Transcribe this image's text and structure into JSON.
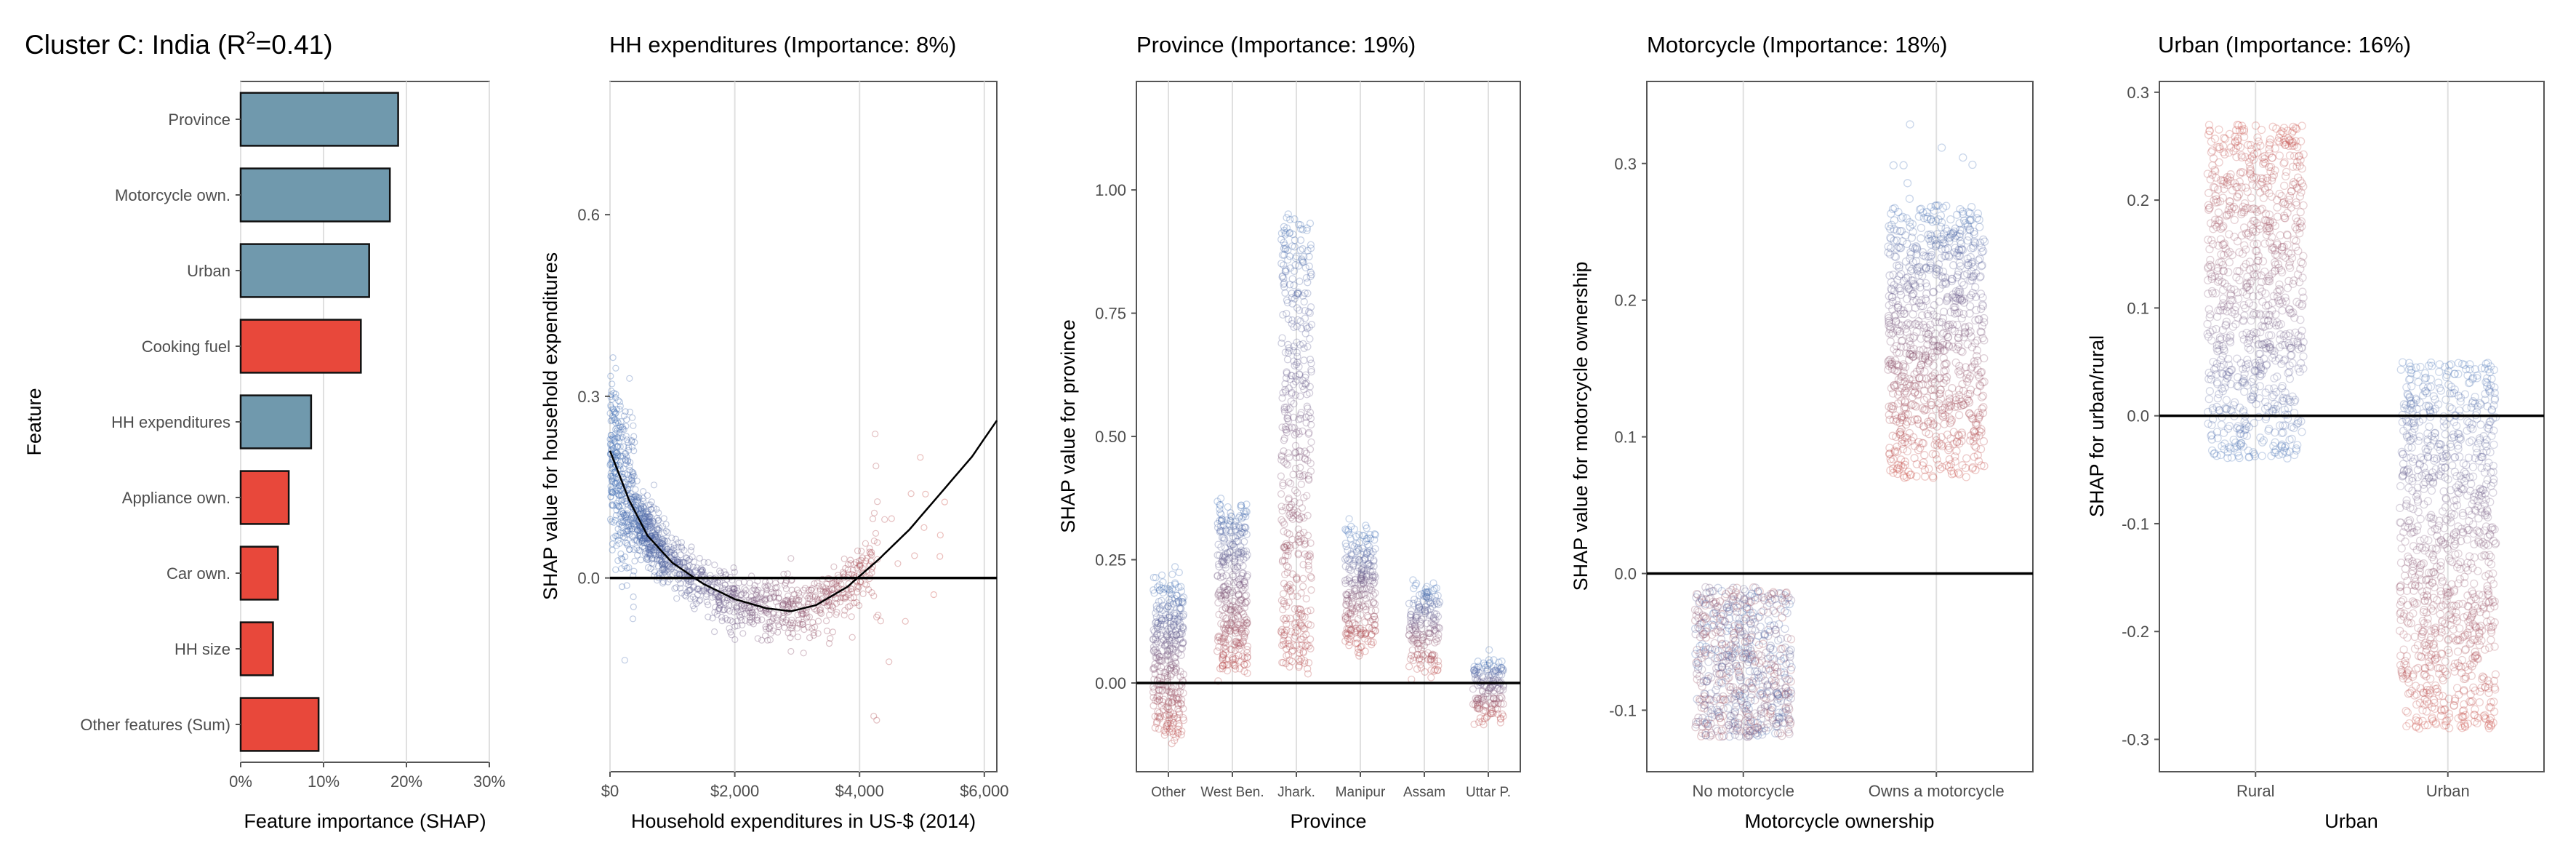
{
  "colors": {
    "urban_bar": "#7099AD",
    "rural_bar": "#E8483B",
    "blue": "#3E6DB5",
    "red": "#C8433A",
    "grid": "#E0E0E0"
  },
  "chart_data": [
    {
      "type": "bar",
      "orientation": "horizontal",
      "title": "Cluster C: India (R²=0.41)",
      "title_main": "Cluster C: India (R",
      "title_sup": "2",
      "title_rest": "=0.41)",
      "xlabel": "Feature importance (SHAP)",
      "ylabel": "Feature",
      "xlim": [
        0,
        0.3
      ],
      "xticks": [
        {
          "v": 0,
          "label": "0%"
        },
        {
          "v": 0.1,
          "label": "10%"
        },
        {
          "v": 0.2,
          "label": "20%"
        },
        {
          "v": 0.3,
          "label": "30%"
        }
      ],
      "categories": [
        "Province",
        "Motorcycle own.",
        "Urban",
        "Cooking fuel",
        "HH expenditures",
        "Appliance own.",
        "Car own.",
        "HH size",
        "Other features (Sum)"
      ],
      "values": [
        0.19,
        0.18,
        0.155,
        0.145,
        0.085,
        0.058,
        0.045,
        0.039,
        0.094
      ],
      "fills": [
        "urban_bar",
        "urban_bar",
        "urban_bar",
        "rural_bar",
        "urban_bar",
        "rural_bar",
        "rural_bar",
        "rural_bar",
        "rural_bar"
      ]
    },
    {
      "type": "scatter",
      "title": "HH expenditures (Importance: 8%)",
      "xlabel": "Household expenditures in US-$ (2014)",
      "ylabel": "SHAP value for household expenditures",
      "xlim": [
        0,
        6200
      ],
      "ylim": [
        -0.32,
        0.82
      ],
      "xticks": [
        {
          "v": 0,
          "label": "$0"
        },
        {
          "v": 2000,
          "label": "$2,000"
        },
        {
          "v": 4000,
          "label": "$4,000"
        },
        {
          "v": 6000,
          "label": "$6,000"
        }
      ],
      "yticks": [
        {
          "v": 0,
          "label": "0.0"
        },
        {
          "v": 0.3,
          "label": "0.3"
        },
        {
          "v": 0.6,
          "label": "0.6"
        }
      ],
      "hline": 0,
      "fit_curve": {
        "x": [
          0,
          300,
          600,
          1000,
          1500,
          2000,
          2500,
          2900,
          3300,
          3800,
          4300,
          4800,
          5300,
          5800,
          6200
        ],
        "y": [
          0.21,
          0.13,
          0.07,
          0.025,
          -0.01,
          -0.035,
          -0.05,
          -0.055,
          -0.045,
          -0.015,
          0.03,
          0.08,
          0.14,
          0.2,
          0.26
        ]
      }
    },
    {
      "type": "scatter",
      "title": "Province (Importance: 19%)",
      "xlabel": "Province",
      "ylabel": "SHAP value for province",
      "ylim": [
        -0.18,
        1.22
      ],
      "categories": [
        "Other",
        "West Ben.",
        "Jhark.",
        "Manipur",
        "Assam",
        "Uttar P."
      ],
      "yticks": [
        {
          "v": 0,
          "label": "0.00"
        },
        {
          "v": 0.25,
          "label": "0.25"
        },
        {
          "v": 0.5,
          "label": "0.50"
        },
        {
          "v": 0.75,
          "label": "0.75"
        },
        {
          "v": 1.0,
          "label": "1.00"
        }
      ],
      "hline": 0
    },
    {
      "type": "scatter",
      "title": "Motorcycle (Importance: 18%)",
      "xlabel": "Motorcycle ownership",
      "ylabel": "SHAP value for motorcycle ownership",
      "ylim": [
        -0.145,
        0.36
      ],
      "categories": [
        "No motorcycle",
        "Owns a motorcycle"
      ],
      "yticks": [
        {
          "v": -0.1,
          "label": "-0.1"
        },
        {
          "v": 0,
          "label": "0.0"
        },
        {
          "v": 0.1,
          "label": "0.1"
        },
        {
          "v": 0.2,
          "label": "0.2"
        },
        {
          "v": 0.3,
          "label": "0.3"
        }
      ],
      "hline": 0
    },
    {
      "type": "scatter",
      "title": "Urban (Importance: 16%)",
      "xlabel": "Urban",
      "ylabel": "SHAP for urban/rural",
      "ylim": [
        -0.33,
        0.31
      ],
      "categories": [
        "Rural",
        "Urban"
      ],
      "yticks": [
        {
          "v": -0.3,
          "label": "-0.3"
        },
        {
          "v": -0.2,
          "label": "-0.2"
        },
        {
          "v": -0.1,
          "label": "-0.1"
        },
        {
          "v": 0,
          "label": "0.0"
        },
        {
          "v": 0.1,
          "label": "0.1"
        },
        {
          "v": 0.2,
          "label": "0.2"
        },
        {
          "v": 0.3,
          "label": "0.3"
        }
      ],
      "hline": 0
    }
  ]
}
